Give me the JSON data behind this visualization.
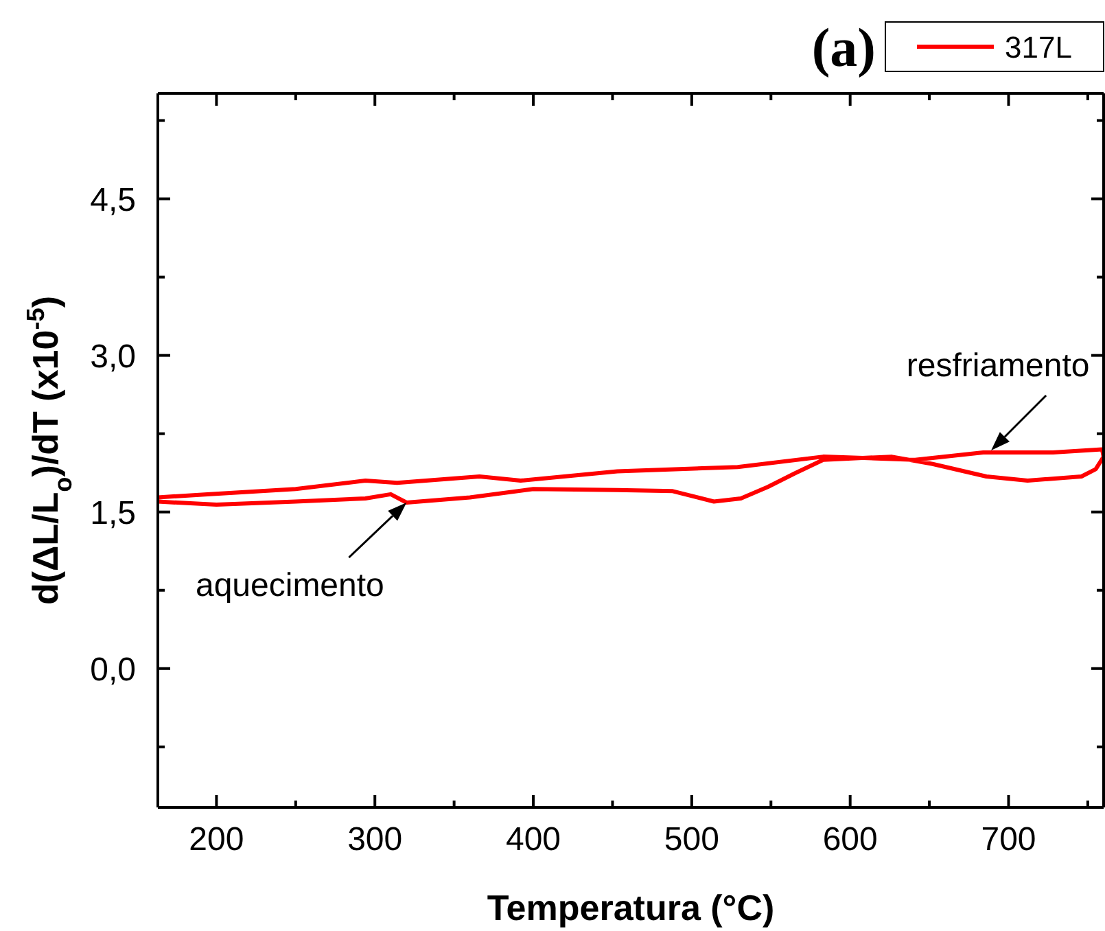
{
  "chart_data": {
    "type": "line",
    "title": "(a)",
    "xlabel": "Temperatura (°C)",
    "ylabel": "d(ΔL/L$_{o}$)/dT (x10$^{-5}$)",
    "xlim": [
      163,
      760
    ],
    "ylim": [
      -1.33,
      5.51
    ],
    "xticks": [
      200,
      {
        "value": 250,
        "label": null
      },
      300,
      {
        "value": 350,
        "label": null
      },
      400,
      {
        "value": 450,
        "label": null
      },
      500,
      {
        "value": 550,
        "label": null
      },
      600,
      {
        "value": 650,
        "label": null
      },
      700,
      {
        "value": 750,
        "label": null
      }
    ],
    "yticks": [
      {
        "value": -0.75,
        "label": null
      },
      {
        "value": 0,
        "label": "0,0"
      },
      {
        "value": 0.75,
        "label": null
      },
      {
        "value": 1.5,
        "label": "1,5"
      },
      {
        "value": 2.25,
        "label": null
      },
      {
        "value": 3,
        "label": "3,0"
      },
      {
        "value": 3.75,
        "label": null
      },
      {
        "value": 4.5,
        "label": "4,5"
      },
      {
        "value": 5.25,
        "label": null
      }
    ],
    "grid": false,
    "legend": "top right",
    "marker": "none",
    "line_style": "solid",
    "series": [
      {
        "name": "317L",
        "color": "#ff0000",
        "x": [
          163,
          200,
          250,
          294,
          310,
          320,
          360,
          400,
          453,
          488,
          514,
          531,
          548,
          565,
          583,
          626,
          652,
          686,
          712,
          746,
          755,
          760,
          759,
          728,
          684,
          641,
          583,
          529,
          453,
          392,
          366,
          314,
          294,
          250,
          196,
          163
        ],
        "values": [
          1.6,
          1.57,
          1.6,
          1.63,
          1.67,
          1.59,
          1.64,
          1.72,
          1.71,
          1.7,
          1.6,
          1.63,
          1.74,
          1.87,
          2.0,
          2.03,
          1.96,
          1.84,
          1.8,
          1.84,
          1.91,
          2.03,
          2.1,
          2.07,
          2.07,
          2.0,
          2.03,
          1.93,
          1.89,
          1.8,
          1.84,
          1.78,
          1.8,
          1.72,
          1.67,
          1.64
        ]
      }
    ],
    "annotations": [
      {
        "text": "aquecimento",
        "x": 320,
        "y": 1.59
      },
      {
        "text": "resfriamento",
        "x": 689,
        "y": 2.09
      }
    ]
  }
}
